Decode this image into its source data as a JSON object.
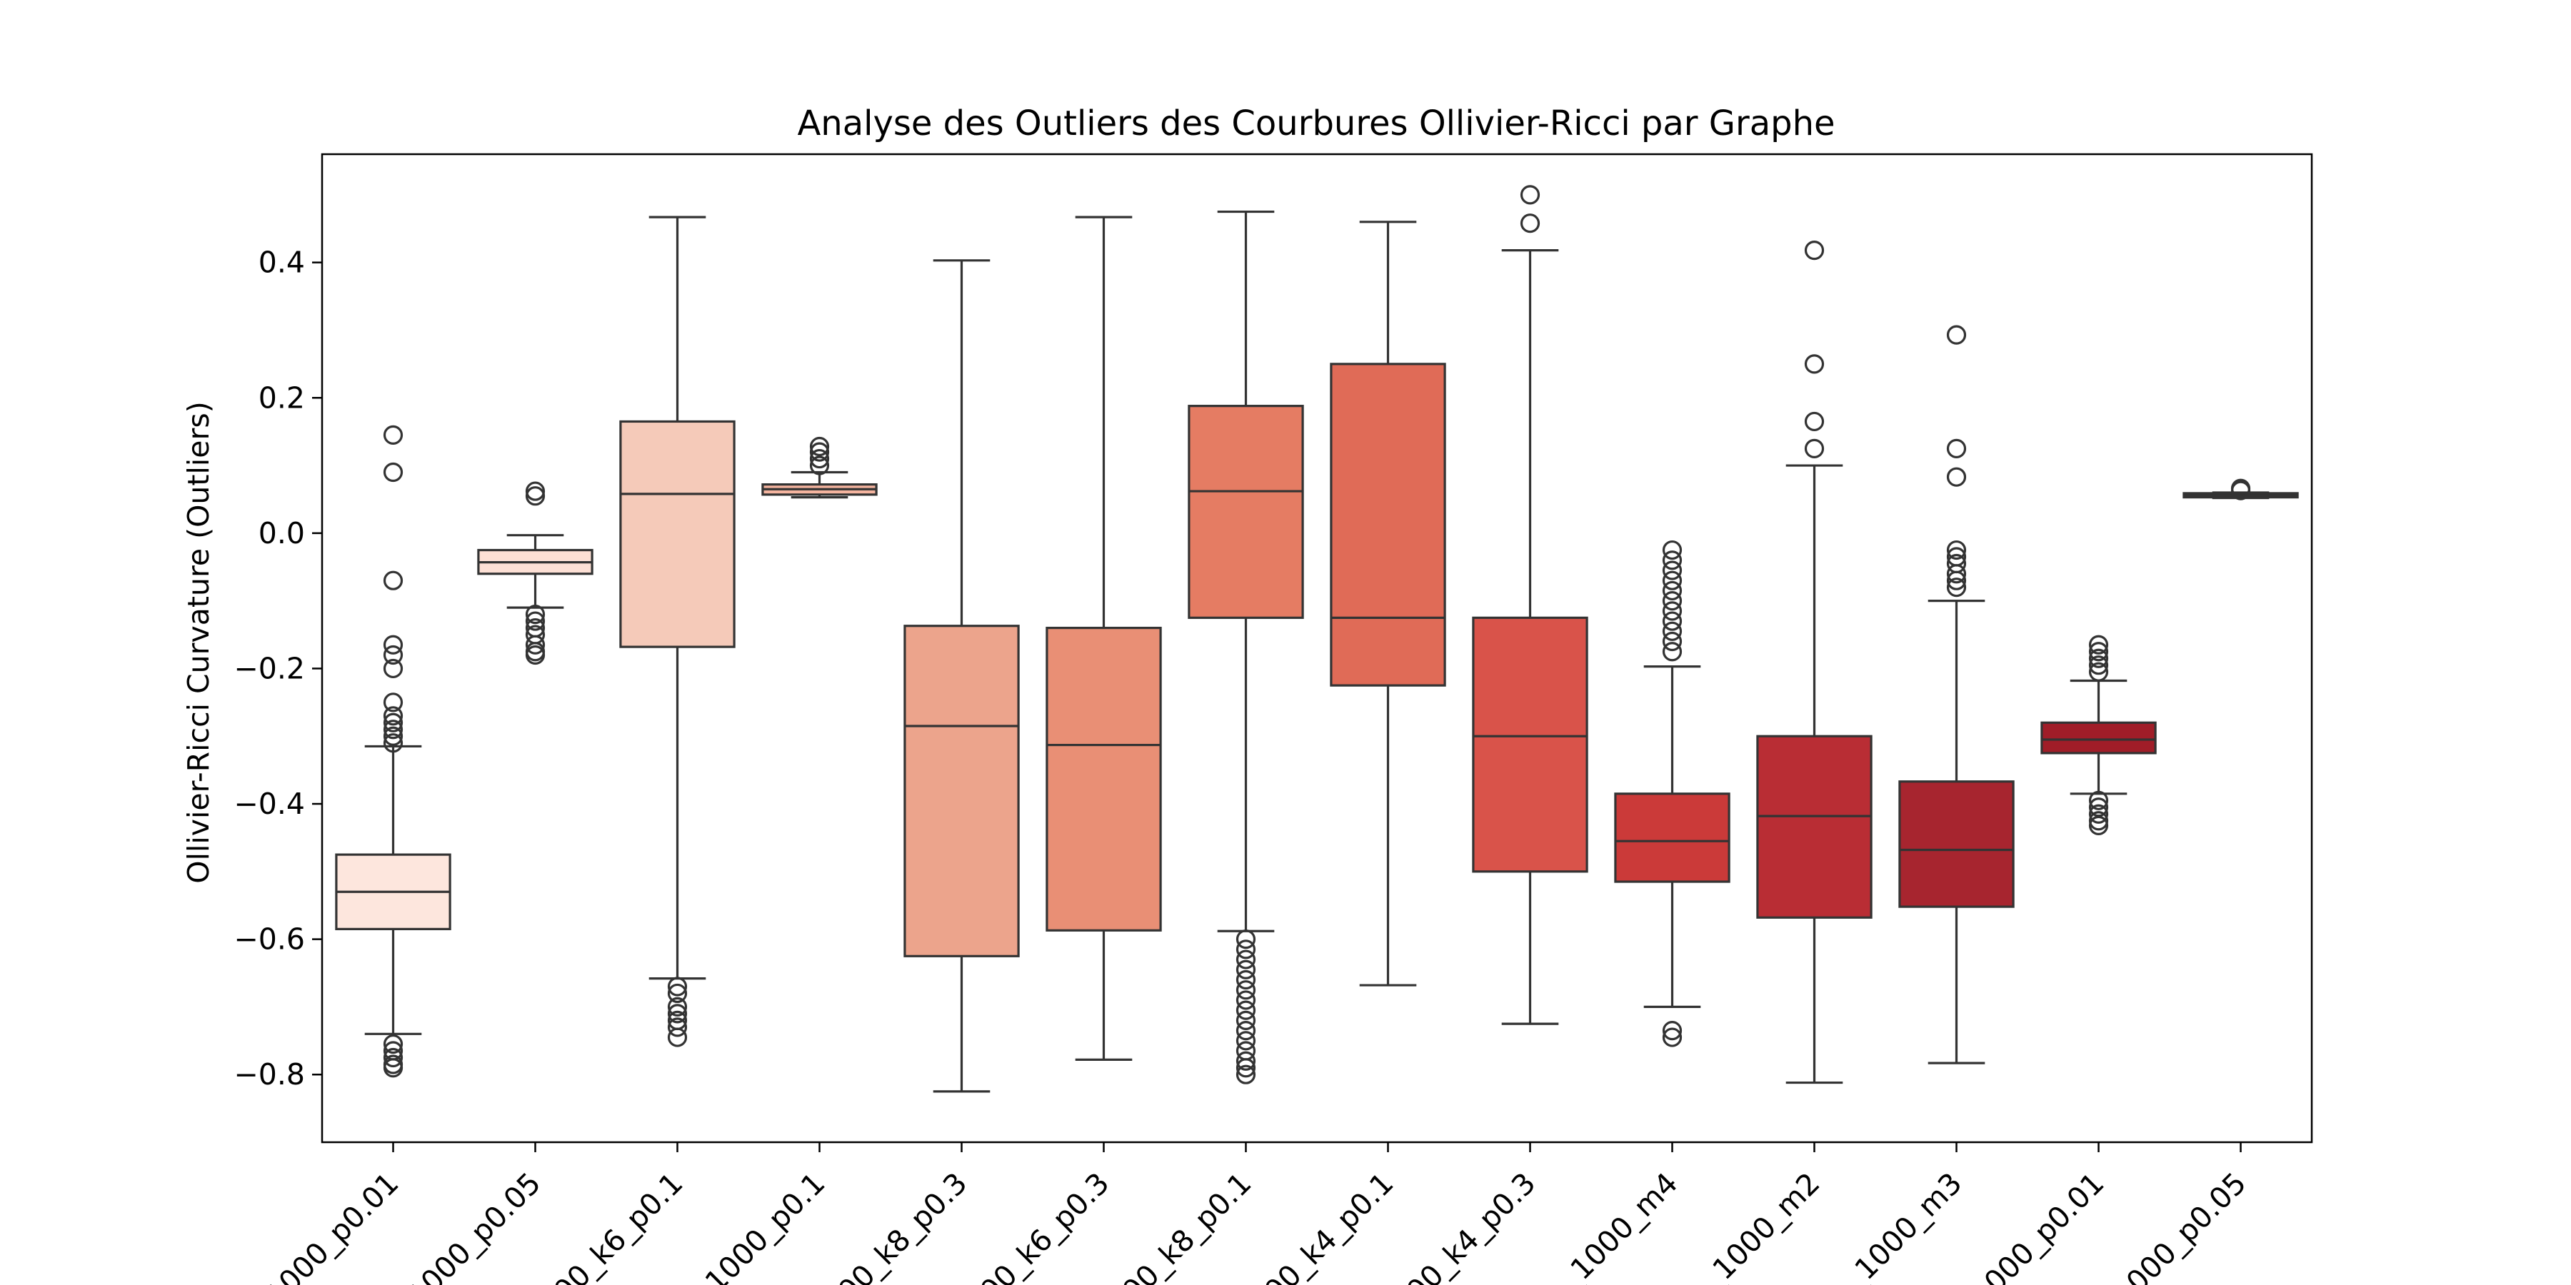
{
  "chart_data": {
    "type": "box",
    "title": "Analyse des Outliers des Courbures Ollivier-Ricci par Graphe",
    "xlabel": "",
    "ylabel": "Ollivier-Ricci Curvature (Outliers)",
    "ylim": [
      -0.9,
      0.56
    ],
    "yticks": [
      -0.8,
      -0.6,
      -0.4,
      -0.2,
      0.0,
      0.2,
      0.4
    ],
    "ytick_labels": [
      "−0.8",
      "−0.6",
      "−0.4",
      "−0.2",
      "0.0",
      "0.2",
      "0.4"
    ],
    "grid": false,
    "legend": "none",
    "categories": [
      "1000_p0.01",
      "1000_p0.05",
      "00_k6_p0.1",
      "1000_p0.1",
      "00_k8_p0.3",
      "00_k6_p0.3",
      "00_k8_p0.1",
      "00_k4_p0.1",
      "00_k4_p0.3",
      "_1000_m4",
      "_1000_m2",
      "_1000_m3",
      "000_p0.01",
      "000_p0.05"
    ],
    "boxes": [
      {
        "q1": -0.585,
        "median": -0.53,
        "q3": -0.475,
        "whisker_low": -0.74,
        "whisker_high": -0.315,
        "outliers": [
          0.145,
          0.09,
          -0.07,
          -0.165,
          -0.18,
          -0.2,
          -0.25,
          -0.27,
          -0.28,
          -0.29,
          -0.3,
          -0.31,
          -0.755,
          -0.765,
          -0.775,
          -0.785,
          -0.79
        ],
        "color": "#fde6dd"
      },
      {
        "q1": -0.06,
        "median": -0.043,
        "q3": -0.025,
        "whisker_low": -0.11,
        "whisker_high": -0.003,
        "outliers": [
          0.062,
          0.055,
          -0.12,
          -0.13,
          -0.14,
          -0.15,
          -0.165,
          -0.175,
          -0.18
        ],
        "color": "#fde0d5"
      },
      {
        "q1": -0.168,
        "median": 0.058,
        "q3": 0.165,
        "whisker_low": -0.658,
        "whisker_high": 0.467,
        "outliers": [
          -0.67,
          -0.68,
          -0.7,
          -0.71,
          -0.72,
          -0.73,
          -0.745
        ],
        "color": "#f5cab9"
      },
      {
        "q1": 0.057,
        "median": 0.065,
        "q3": 0.072,
        "whisker_low": 0.053,
        "whisker_high": 0.09,
        "outliers": [
          0.1,
          0.11,
          0.12,
          0.128
        ],
        "color": "#f4b49f"
      },
      {
        "q1": -0.625,
        "median": -0.285,
        "q3": -0.137,
        "whisker_low": -0.825,
        "whisker_high": 0.403,
        "outliers": [],
        "color": "#eca48c"
      },
      {
        "q1": -0.587,
        "median": -0.313,
        "q3": -0.14,
        "whisker_low": -0.778,
        "whisker_high": 0.467,
        "outliers": [],
        "color": "#e98f75"
      },
      {
        "q1": -0.125,
        "median": 0.062,
        "q3": 0.188,
        "whisker_low": -0.588,
        "whisker_high": 0.475,
        "outliers": [
          -0.6,
          -0.615,
          -0.63,
          -0.645,
          -0.66,
          -0.675,
          -0.69,
          -0.705,
          -0.72,
          -0.735,
          -0.75,
          -0.765,
          -0.78,
          -0.79,
          -0.8
        ],
        "color": "#e57c63"
      },
      {
        "q1": -0.225,
        "median": -0.125,
        "q3": 0.25,
        "whisker_low": -0.668,
        "whisker_high": 0.46,
        "outliers": [],
        "color": "#e06b57"
      },
      {
        "q1": -0.5,
        "median": -0.3,
        "q3": -0.125,
        "whisker_low": -0.725,
        "whisker_high": 0.418,
        "outliers": [
          0.5,
          0.458
        ],
        "color": "#d9534a"
      },
      {
        "q1": -0.515,
        "median": -0.455,
        "q3": -0.385,
        "whisker_low": -0.7,
        "whisker_high": -0.197,
        "outliers": [
          -0.025,
          -0.04,
          -0.055,
          -0.07,
          -0.085,
          -0.1,
          -0.115,
          -0.13,
          -0.145,
          -0.16,
          -0.175,
          -0.735,
          -0.745
        ],
        "color": "#cb3a39"
      },
      {
        "q1": -0.568,
        "median": -0.418,
        "q3": -0.3,
        "whisker_low": -0.812,
        "whisker_high": 0.1,
        "outliers": [
          0.418,
          0.25,
          0.165,
          0.125
        ],
        "color": "#b92d34"
      },
      {
        "q1": -0.552,
        "median": -0.468,
        "q3": -0.367,
        "whisker_low": -0.783,
        "whisker_high": -0.1,
        "outliers": [
          0.293,
          0.125,
          0.083,
          -0.025,
          -0.035,
          -0.045,
          -0.06,
          -0.07,
          -0.08
        ],
        "color": "#a7252f"
      },
      {
        "q1": -0.325,
        "median": -0.305,
        "q3": -0.28,
        "whisker_low": -0.385,
        "whisker_high": -0.218,
        "outliers": [
          -0.165,
          -0.175,
          -0.185,
          -0.195,
          -0.205,
          -0.395,
          -0.405,
          -0.415,
          -0.425,
          -0.432
        ],
        "color": "#a01d28"
      },
      {
        "q1": 0.053,
        "median": 0.056,
        "q3": 0.059,
        "whisker_low": 0.052,
        "whisker_high": 0.06,
        "outliers": [
          0.063,
          0.066
        ],
        "color": "#6b0f1a"
      }
    ]
  }
}
